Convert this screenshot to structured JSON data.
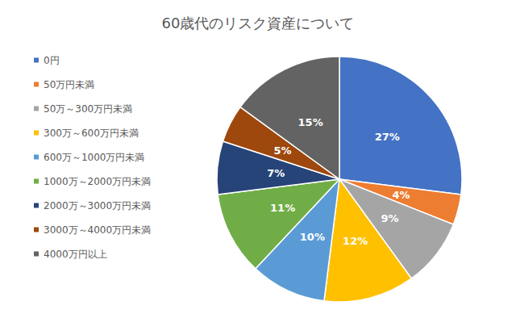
{
  "chart_data": {
    "type": "pie",
    "title": "60歳代のリスク資産について",
    "categories": [
      "0円",
      "50万円未満",
      "50万～300万円未満",
      "300万～600万円未満",
      "600万～1000万円未満",
      "1000万～2000万円未満",
      "2000万～3000万円未満",
      "3000万～4000万円未満",
      "4000万円以上"
    ],
    "values": [
      27,
      4,
      9,
      12,
      10,
      11,
      7,
      5,
      15
    ],
    "value_labels": [
      "27%",
      "4%",
      "9%",
      "12%",
      "10%",
      "11%",
      "7%",
      "5%",
      "15%"
    ],
    "colors": [
      "#4472c4",
      "#ed7d31",
      "#a5a5a5",
      "#ffc000",
      "#5b9bd5",
      "#70ad47",
      "#264478",
      "#9e480e",
      "#636363"
    ],
    "data_labels": true,
    "legend": "left"
  }
}
